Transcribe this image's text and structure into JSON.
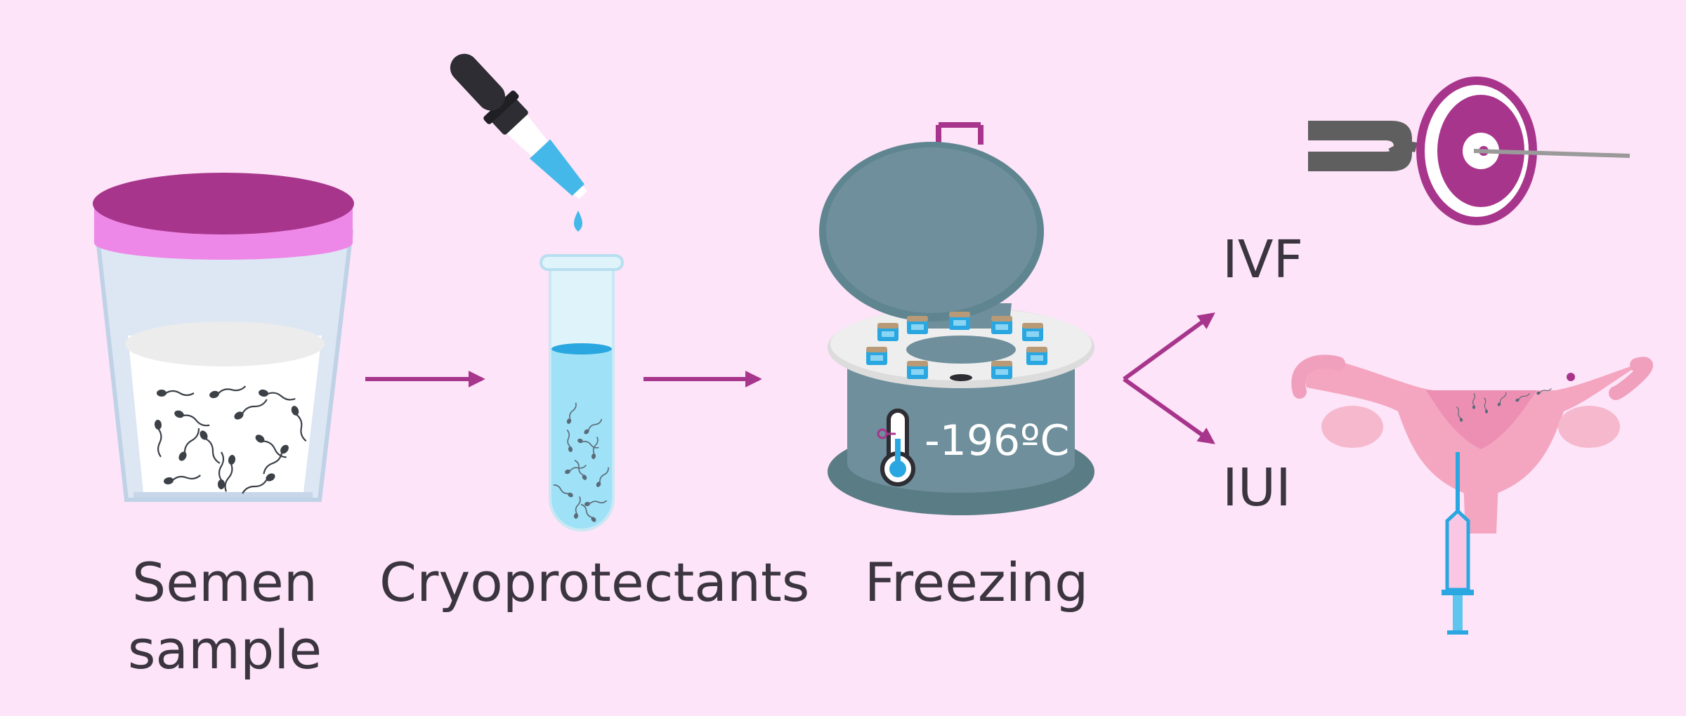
{
  "steps": [
    {
      "label_line1": "Semen",
      "label_line2": "sample"
    },
    {
      "label": "Cryoprotectants"
    },
    {
      "label": "Freezing",
      "temperature": "-196ºC"
    }
  ],
  "outcomes": [
    {
      "label": "IVF"
    },
    {
      "label": "IUI"
    }
  ],
  "colors": {
    "background": "#fde4f8",
    "arrow": "#a8358c",
    "lid": "#a8358c",
    "liquid": "#45b8ea",
    "container": "#6e8f9b",
    "text": "#3b3540"
  },
  "icons": [
    "semen-cup-icon",
    "dropper-icon",
    "test-tube-icon",
    "cryo-tank-icon",
    "thermometer-icon",
    "icsi-icon",
    "uterus-icon",
    "syringe-icon"
  ]
}
